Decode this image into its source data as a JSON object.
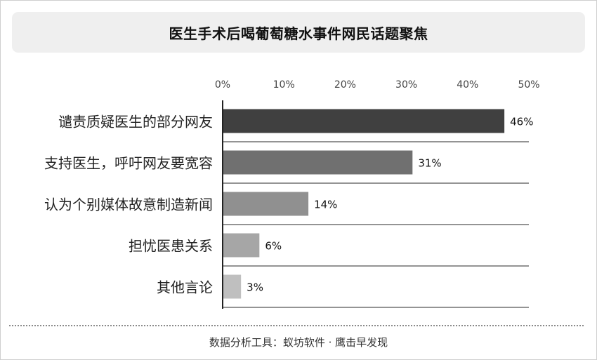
{
  "title": "医生手术后喝葡萄糖水事件网民话题聚焦",
  "footer": "数据分析工具：蚁坊软件 · 鹰击早发现",
  "chart_data": {
    "type": "bar",
    "orientation": "horizontal",
    "categories": [
      "谴责质疑医生的部分网友",
      "支持医生，呼吁网友要宽容",
      "认为个别媒体故意制造新闻",
      "担忧医患关系",
      "其他言论"
    ],
    "values": [
      46,
      31,
      14,
      6,
      3
    ],
    "data_labels": [
      "46%",
      "31%",
      "14%",
      "6%",
      "3%"
    ],
    "bar_colors": [
      "#404040",
      "#707070",
      "#909090",
      "#a6a6a6",
      "#bfbfbf"
    ],
    "xlim": [
      0,
      50
    ],
    "xticks": [
      0,
      10,
      20,
      30,
      40,
      50
    ],
    "xtick_labels": [
      "0%",
      "10%",
      "20%",
      "30%",
      "40%",
      "50%"
    ],
    "x_axis_position": "top",
    "grid": "horizontal separators"
  }
}
